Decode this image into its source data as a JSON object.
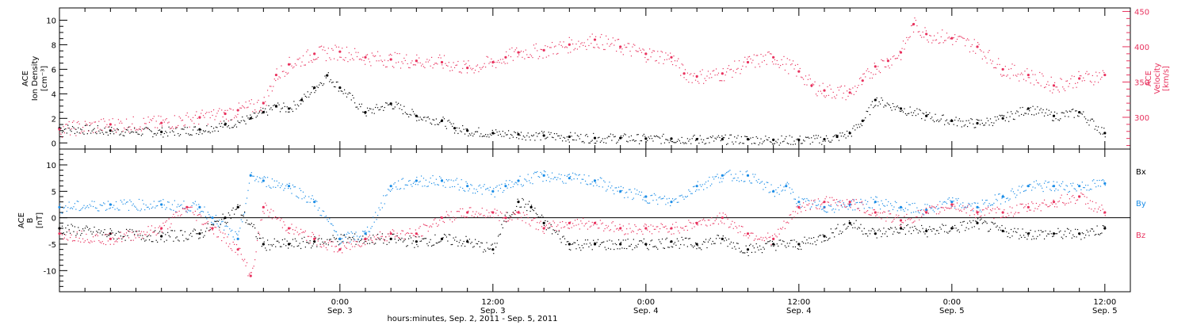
{
  "colors": {
    "black": "#000000",
    "red": "#e8325e",
    "blue": "#1a8ce6"
  },
  "xaxis": {
    "title": "hours:minutes, Sep.  2, 2011 - Sep.  5, 2011",
    "ticks": [
      {
        "time": "0:00",
        "day": "Sep. 3"
      },
      {
        "time": "12:00",
        "day": "Sep. 3"
      },
      {
        "time": "0:00",
        "day": "Sep. 4"
      },
      {
        "time": "12:00",
        "day": "Sep. 4"
      },
      {
        "time": "0:00",
        "day": "Sep. 5"
      },
      {
        "time": "12:00",
        "day": "Sep. 5"
      }
    ]
  },
  "top_panel": {
    "left_label": [
      "ACE",
      "Ion Density",
      "[cm⁻³]"
    ],
    "right_label": [
      "ACE",
      "Velocity",
      "[km/s]"
    ],
    "left_ticks": [
      "0",
      "2",
      "4",
      "6",
      "8",
      "10"
    ],
    "right_ticks": [
      "300",
      "350",
      "400",
      "450"
    ]
  },
  "bottom_panel": {
    "left_label": [
      "ACE",
      "B",
      "[nT]"
    ],
    "left_ticks": [
      "-10",
      "-5",
      "0",
      "5",
      "10"
    ],
    "legend": [
      "Bx",
      "By",
      "Bz"
    ]
  },
  "chart_data": [
    {
      "type": "scatter",
      "title": "",
      "xlabel": "hours:minutes, Sep.  2, 2011 - Sep.  5, 2011",
      "x_unit": "hours since 2011-09-02 00:00",
      "xlim": [
        0,
        84
      ],
      "ylabel": "ACE Ion Density [cm-3]",
      "ylim": [
        -0.5,
        11
      ],
      "y2label": "ACE Velocity [km/s]",
      "y2lim": [
        255,
        455
      ],
      "series": [
        {
          "name": "Ion Density",
          "axis": "left",
          "color": "#000000",
          "x": [
            0,
            4,
            8,
            11,
            13,
            15,
            16,
            17,
            18,
            19,
            20,
            21,
            22,
            24,
            26,
            28,
            30,
            31,
            32,
            34,
            36,
            38,
            40,
            42,
            44,
            46,
            48,
            50,
            52,
            54,
            56,
            58,
            60,
            61,
            62,
            63,
            64,
            66,
            68,
            70,
            72,
            74,
            76,
            78,
            80,
            82
          ],
          "y": [
            1.2,
            1.0,
            0.9,
            1.1,
            1.5,
            2.0,
            2.5,
            3.0,
            2.8,
            3.5,
            4.5,
            5.5,
            4.5,
            2.5,
            3.2,
            2.2,
            1.8,
            1.2,
            1.0,
            0.8,
            0.7,
            0.6,
            0.5,
            0.4,
            0.4,
            0.35,
            0.35,
            0.3,
            0.3,
            0.3,
            0.25,
            0.25,
            0.3,
            0.5,
            0.8,
            1.8,
            3.5,
            2.8,
            2.2,
            1.8,
            1.6,
            2.0,
            2.8,
            2.2,
            2.5,
            0.8
          ]
        },
        {
          "name": "Velocity",
          "axis": "right",
          "color": "#e8325e",
          "x": [
            0,
            4,
            8,
            11,
            13,
            14,
            16,
            17,
            18,
            20,
            22,
            24,
            26,
            28,
            30,
            32,
            34,
            35,
            36,
            38,
            40,
            42,
            44,
            46,
            48,
            49,
            50,
            52,
            54,
            56,
            58,
            59,
            60,
            62,
            63,
            64,
            65,
            66,
            67,
            68,
            70,
            72,
            74,
            76,
            78,
            80,
            82
          ],
          "y": [
            283,
            290,
            292,
            300,
            305,
            310,
            320,
            360,
            375,
            390,
            393,
            385,
            382,
            380,
            378,
            370,
            378,
            385,
            392,
            395,
            403,
            410,
            400,
            390,
            385,
            362,
            358,
            362,
            378,
            385,
            365,
            345,
            338,
            335,
            352,
            372,
            380,
            392,
            432,
            418,
            412,
            400,
            368,
            360,
            345,
            355,
            360
          ]
        }
      ]
    },
    {
      "type": "scatter",
      "title": "",
      "xlabel": "hours:minutes, Sep.  2, 2011 - Sep.  5, 2011",
      "x_unit": "hours since 2011-09-02 00:00",
      "xlim": [
        0,
        84
      ],
      "ylabel": "ACE B [nT]",
      "ylim": [
        -14,
        13
      ],
      "series": [
        {
          "name": "Bx",
          "color": "#000000",
          "x": [
            0,
            4,
            8,
            11,
            13,
            14,
            16,
            18,
            20,
            22,
            24,
            26,
            28,
            30,
            32,
            34,
            35,
            36,
            37,
            38,
            40,
            42,
            44,
            46,
            48,
            50,
            52,
            54,
            56,
            58,
            60,
            62,
            64,
            66,
            68,
            70,
            72,
            74,
            76,
            78,
            80,
            82
          ],
          "y": [
            -2,
            -3,
            -3.5,
            -3,
            0,
            2,
            -5,
            -5,
            -4.5,
            -4,
            -4,
            -4,
            -4.5,
            -4,
            -4.5,
            -6,
            0,
            3,
            2,
            -1,
            -5,
            -5,
            -5,
            -5,
            -4.5,
            -5,
            -4,
            -6,
            -5,
            -5,
            -3.5,
            -1,
            -3,
            -2,
            -2.5,
            -2,
            -1,
            -2.5,
            -3,
            -3,
            -3,
            -2
          ]
        },
        {
          "name": "By",
          "color": "#1a8ce6",
          "x": [
            0,
            4,
            8,
            11,
            12,
            14,
            15,
            16,
            18,
            20,
            22,
            24,
            26,
            28,
            30,
            32,
            34,
            35,
            36,
            38,
            40,
            42,
            44,
            46,
            48,
            50,
            52,
            54,
            56,
            57,
            58,
            60,
            62,
            64,
            66,
            68,
            70,
            72,
            74,
            76,
            78,
            80,
            82
          ],
          "y": [
            2,
            2.5,
            2.5,
            2,
            0,
            -4,
            8,
            7,
            6,
            3,
            -4,
            -3,
            6,
            7,
            7,
            6,
            5,
            6,
            7,
            8,
            7.5,
            7,
            5,
            4,
            3,
            6,
            8,
            8,
            5,
            6,
            3,
            2,
            2.5,
            3,
            2,
            1.5,
            3,
            2,
            4,
            6,
            6,
            6,
            6.5
          ]
        },
        {
          "name": "Bz",
          "color": "#e8325e",
          "x": [
            0,
            4,
            8,
            10,
            12,
            14,
            15,
            16,
            18,
            20,
            22,
            24,
            26,
            28,
            30,
            32,
            34,
            35,
            36,
            38,
            40,
            42,
            44,
            46,
            48,
            50,
            52,
            54,
            56,
            58,
            60,
            62,
            64,
            66,
            68,
            70,
            72,
            74,
            76,
            78,
            80,
            82
          ],
          "y": [
            -3,
            -4,
            -2,
            2,
            -2,
            -6,
            -11,
            2,
            -2,
            -4,
            -6,
            -4,
            -3,
            -3,
            0,
            1,
            1,
            0,
            1,
            -2,
            -1,
            -1,
            -2,
            -2,
            -2,
            -1,
            0,
            -3,
            -4,
            2,
            3,
            3,
            1,
            -0.5,
            1,
            2.5,
            1,
            1,
            2,
            3,
            4,
            1
          ]
        }
      ]
    }
  ]
}
